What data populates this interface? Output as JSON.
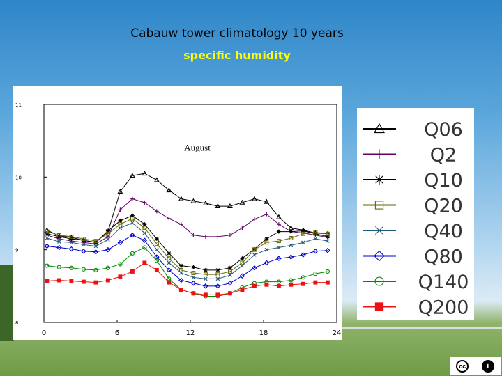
{
  "slide": {
    "title": "Cabauw tower climatology 10 years",
    "subtitle": "specific humidity"
  },
  "license": {
    "cc_label": "cc",
    "by_label": "i"
  },
  "chart_data": {
    "type": "line",
    "title": "",
    "annotation": "August",
    "xlabel": "",
    "ylabel": "",
    "xlim": [
      0,
      24
    ],
    "ylim": [
      8,
      11
    ],
    "x_ticks": [
      "0",
      "6",
      "12",
      "18",
      "24"
    ],
    "y_ticks": [
      "8",
      "9",
      "10",
      "11"
    ],
    "grid": false,
    "legend_position": "right",
    "x": [
      0.25,
      1.25,
      2.25,
      3.25,
      4.25,
      5.25,
      6.25,
      7.25,
      8.25,
      9.25,
      10.25,
      11.25,
      12.25,
      13.25,
      14.25,
      15.25,
      16.25,
      17.25,
      18.25,
      19.25,
      20.25,
      21.25,
      22.25,
      23.25
    ],
    "series": [
      {
        "name": "Q06",
        "color": "#000000",
        "marker": "triangle",
        "values": [
          9.27,
          9.19,
          9.17,
          9.13,
          9.1,
          9.25,
          9.8,
          10.02,
          10.05,
          9.96,
          9.82,
          9.7,
          9.67,
          9.64,
          9.6,
          9.6,
          9.65,
          9.7,
          9.66,
          9.45,
          9.3,
          9.27,
          9.23,
          9.22
        ]
      },
      {
        "name": "Q2",
        "color": "#660066",
        "marker": "plus",
        "values": [
          9.2,
          9.15,
          9.12,
          9.1,
          9.08,
          9.18,
          9.55,
          9.7,
          9.65,
          9.53,
          9.43,
          9.35,
          9.2,
          9.18,
          9.18,
          9.2,
          9.3,
          9.42,
          9.49,
          9.35,
          9.25,
          9.23,
          9.2,
          9.17
        ]
      },
      {
        "name": "Q10",
        "color": "#000000",
        "marker": "asterisk",
        "values": [
          9.22,
          9.18,
          9.15,
          9.13,
          9.1,
          9.26,
          9.4,
          9.47,
          9.35,
          9.15,
          8.95,
          8.78,
          8.76,
          8.72,
          8.72,
          8.75,
          8.88,
          9.01,
          9.15,
          9.25,
          9.25,
          9.26,
          9.22,
          9.18
        ]
      },
      {
        "name": "Q20",
        "color": "#666600",
        "marker": "square",
        "values": [
          9.25,
          9.2,
          9.18,
          9.15,
          9.12,
          9.22,
          9.35,
          9.43,
          9.3,
          9.08,
          8.88,
          8.72,
          8.68,
          8.66,
          8.66,
          8.7,
          8.82,
          9.0,
          9.1,
          9.12,
          9.16,
          9.22,
          9.24,
          9.22
        ]
      },
      {
        "name": "Q40",
        "color": "#1f5b78",
        "marker": "x",
        "values": [
          9.16,
          9.11,
          9.1,
          9.07,
          9.05,
          9.14,
          9.3,
          9.37,
          9.23,
          9.0,
          8.82,
          8.68,
          8.62,
          8.6,
          8.6,
          8.65,
          8.78,
          8.93,
          9.0,
          9.03,
          9.06,
          9.1,
          9.15,
          9.12
        ]
      },
      {
        "name": "Q80",
        "color": "#0000cc",
        "marker": "diamond",
        "values": [
          9.05,
          9.03,
          9.01,
          8.98,
          8.97,
          9.0,
          9.1,
          9.2,
          9.13,
          8.9,
          8.72,
          8.58,
          8.54,
          8.5,
          8.5,
          8.54,
          8.64,
          8.75,
          8.82,
          8.88,
          8.9,
          8.93,
          8.98,
          8.99
        ]
      },
      {
        "name": "Q140",
        "color": "#008800",
        "marker": "circle",
        "values": [
          8.78,
          8.76,
          8.75,
          8.73,
          8.72,
          8.75,
          8.8,
          8.95,
          9.03,
          8.85,
          8.6,
          8.45,
          8.4,
          8.36,
          8.36,
          8.4,
          8.48,
          8.54,
          8.56,
          8.56,
          8.58,
          8.62,
          8.67,
          8.7
        ]
      },
      {
        "name": "Q200",
        "color": "#ee1111",
        "marker": "filled-square",
        "values": [
          8.57,
          8.58,
          8.57,
          8.56,
          8.55,
          8.58,
          8.63,
          8.7,
          8.82,
          8.72,
          8.55,
          8.45,
          8.4,
          8.38,
          8.38,
          8.4,
          8.45,
          8.5,
          8.52,
          8.5,
          8.52,
          8.53,
          8.55,
          8.55
        ]
      }
    ]
  }
}
